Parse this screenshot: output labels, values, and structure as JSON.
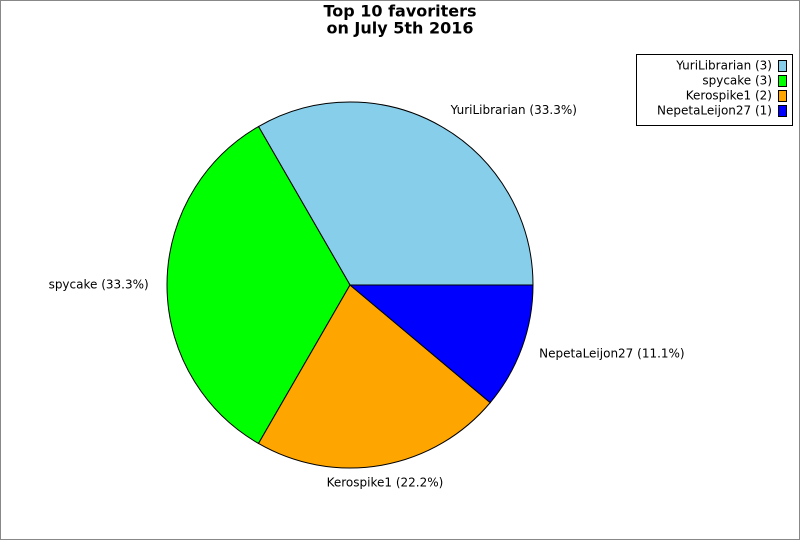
{
  "chart_data": {
    "type": "pie",
    "title": "Top 10 favoriters",
    "subtitle": "on July 5th 2016",
    "categories": [
      "YuriLibrarian (3)",
      "spycake (3)",
      "Kerospike1 (2)",
      "NepetaLeijon27 (1)"
    ],
    "values": [
      33.3,
      33.3,
      22.2,
      11.1
    ],
    "value_labels": [
      "YuriLibrarian (33.3%)",
      "spycake (33.3%)",
      "Kerospike1 (22.2%)",
      "NepetaLeijon27 (11.1%)"
    ],
    "colors": [
      "#87ceeb",
      "#00ff00",
      "#ffa500",
      "#0000ff"
    ],
    "legend": "upper right"
  }
}
